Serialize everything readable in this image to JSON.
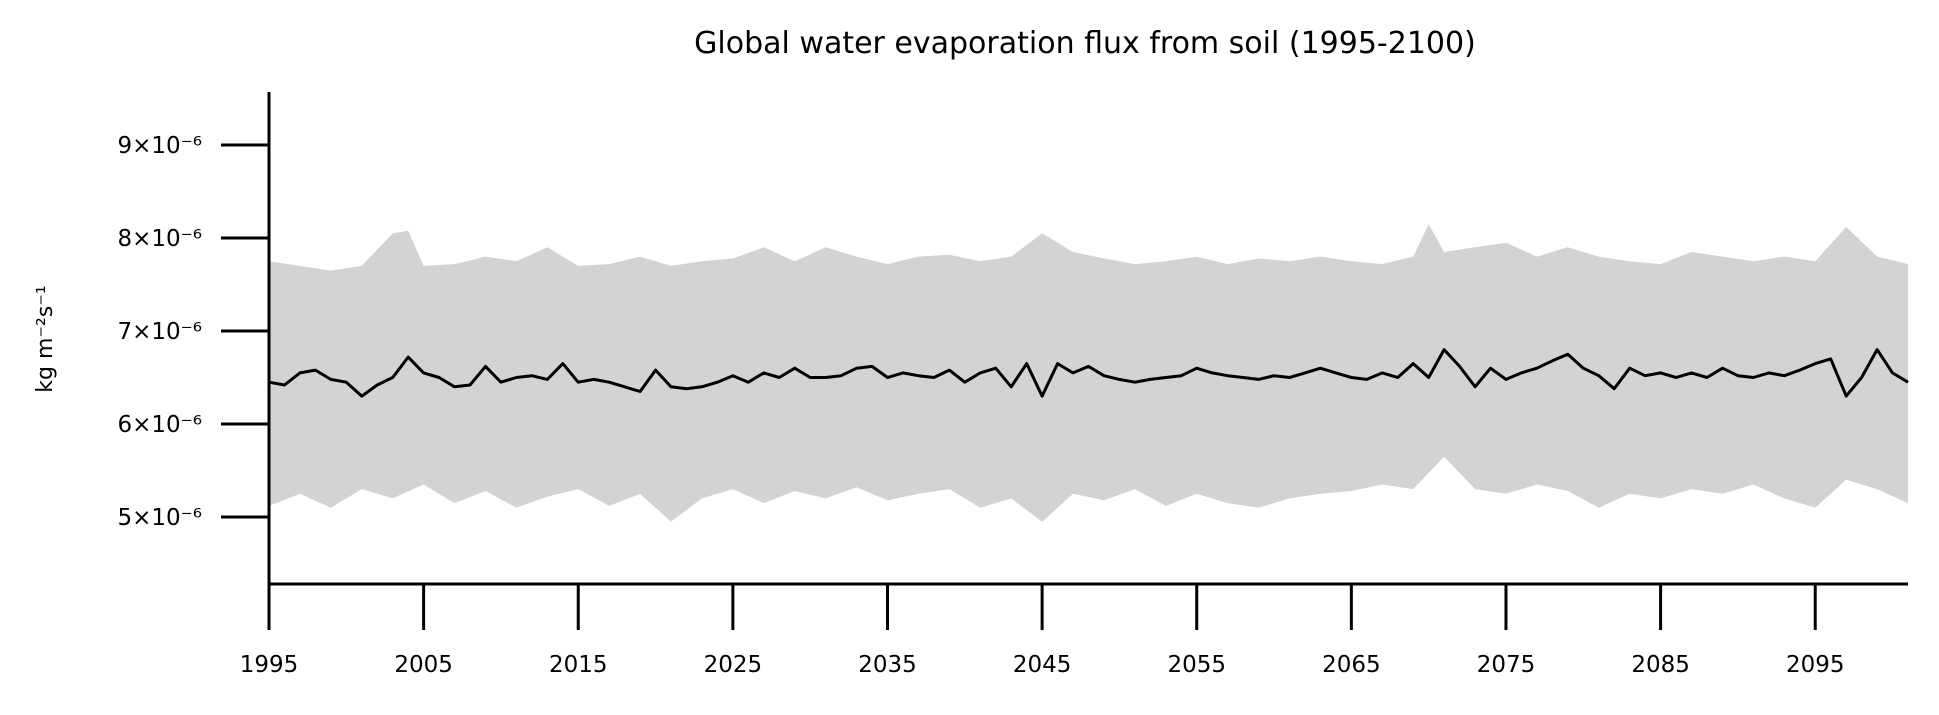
{
  "chart_data": {
    "type": "line",
    "title": "Global water evaporation flux from soil (1995-2100)",
    "xlabel": "",
    "ylabel": "kg m⁻²s⁻¹",
    "xlim": [
      1995,
      2101
    ],
    "ylim": [
      4.28e-06,
      9.57e-06
    ],
    "grid": false,
    "legend": "none",
    "x_ticks": [
      1995,
      2005,
      2015,
      2025,
      2035,
      2045,
      2055,
      2065,
      2075,
      2085,
      2095
    ],
    "y_ticks": [
      {
        "value": 5e-06,
        "label": "5×10⁻⁶"
      },
      {
        "value": 6e-06,
        "label": "6×10⁻⁶"
      },
      {
        "value": 7e-06,
        "label": "7×10⁻⁶"
      },
      {
        "value": 8e-06,
        "label": "8×10⁻⁶"
      },
      {
        "value": 9e-06,
        "label": "9×10⁻⁶"
      }
    ],
    "colors": {
      "line": "#000000",
      "band": "#d3d3d3",
      "axis": "#000000"
    },
    "series": [
      {
        "role": "mean",
        "x": [
          1995,
          1996,
          1997,
          1998,
          1999,
          2000,
          2001,
          2002,
          2003,
          2004,
          2005,
          2006,
          2007,
          2008,
          2009,
          2010,
          2011,
          2012,
          2013,
          2014,
          2015,
          2016,
          2017,
          2018,
          2019,
          2020,
          2021,
          2022,
          2023,
          2024,
          2025,
          2026,
          2027,
          2028,
          2029,
          2030,
          2031,
          2032,
          2033,
          2034,
          2035,
          2036,
          2037,
          2038,
          2039,
          2040,
          2041,
          2042,
          2043,
          2044,
          2045,
          2046,
          2047,
          2048,
          2049,
          2050,
          2051,
          2052,
          2053,
          2054,
          2055,
          2056,
          2057,
          2058,
          2059,
          2060,
          2061,
          2062,
          2063,
          2064,
          2065,
          2066,
          2067,
          2068,
          2069,
          2070,
          2071,
          2072,
          2073,
          2074,
          2075,
          2076,
          2077,
          2078,
          2079,
          2080,
          2081,
          2082,
          2083,
          2084,
          2085,
          2086,
          2087,
          2088,
          2089,
          2090,
          2091,
          2092,
          2093,
          2094,
          2095,
          2096,
          2097,
          2098,
          2099,
          2100,
          2101
        ],
        "y": [
          6.45e-06,
          6.42e-06,
          6.55e-06,
          6.58e-06,
          6.48e-06,
          6.45e-06,
          6.3e-06,
          6.42e-06,
          6.5e-06,
          6.72e-06,
          6.55e-06,
          6.5e-06,
          6.4e-06,
          6.42e-06,
          6.62e-06,
          6.45e-06,
          6.5e-06,
          6.52e-06,
          6.48e-06,
          6.65e-06,
          6.45e-06,
          6.48e-06,
          6.45e-06,
          6.4e-06,
          6.35e-06,
          6.58e-06,
          6.4e-06,
          6.38e-06,
          6.4e-06,
          6.45e-06,
          6.52e-06,
          6.45e-06,
          6.55e-06,
          6.5e-06,
          6.6e-06,
          6.5e-06,
          6.5e-06,
          6.52e-06,
          6.6e-06,
          6.62e-06,
          6.5e-06,
          6.55e-06,
          6.52e-06,
          6.5e-06,
          6.58e-06,
          6.45e-06,
          6.55e-06,
          6.6e-06,
          6.4e-06,
          6.65e-06,
          6.3e-06,
          6.65e-06,
          6.55e-06,
          6.62e-06,
          6.52e-06,
          6.48e-06,
          6.45e-06,
          6.48e-06,
          6.5e-06,
          6.52e-06,
          6.6e-06,
          6.55e-06,
          6.52e-06,
          6.5e-06,
          6.48e-06,
          6.52e-06,
          6.5e-06,
          6.55e-06,
          6.6e-06,
          6.55e-06,
          6.5e-06,
          6.48e-06,
          6.55e-06,
          6.5e-06,
          6.65e-06,
          6.5e-06,
          6.8e-06,
          6.62e-06,
          6.4e-06,
          6.6e-06,
          6.48e-06,
          6.55e-06,
          6.6e-06,
          6.68e-06,
          6.75e-06,
          6.6e-06,
          6.52e-06,
          6.38e-06,
          6.6e-06,
          6.52e-06,
          6.55e-06,
          6.5e-06,
          6.55e-06,
          6.5e-06,
          6.6e-06,
          6.52e-06,
          6.5e-06,
          6.55e-06,
          6.52e-06,
          6.58e-06,
          6.65e-06,
          6.7e-06,
          6.3e-06,
          6.5e-06,
          6.8e-06,
          6.55e-06,
          6.45e-06
        ]
      },
      {
        "role": "spread-upper",
        "x": [
          1995,
          1997,
          1999,
          2001,
          2003,
          2004,
          2005,
          2007,
          2009,
          2011,
          2013,
          2015,
          2017,
          2019,
          2021,
          2023,
          2025,
          2027,
          2029,
          2031,
          2033,
          2035,
          2037,
          2039,
          2041,
          2043,
          2045,
          2047,
          2049,
          2051,
          2053,
          2055,
          2057,
          2059,
          2061,
          2063,
          2065,
          2067,
          2069,
          2070,
          2071,
          2073,
          2075,
          2077,
          2079,
          2081,
          2083,
          2085,
          2087,
          2089,
          2091,
          2093,
          2095,
          2097,
          2099,
          2101
        ],
        "y": [
          7.75e-06,
          7.7e-06,
          7.65e-06,
          7.7e-06,
          8.05e-06,
          8.08e-06,
          7.7e-06,
          7.72e-06,
          7.8e-06,
          7.75e-06,
          7.9e-06,
          7.7e-06,
          7.72e-06,
          7.8e-06,
          7.7e-06,
          7.75e-06,
          7.78e-06,
          7.9e-06,
          7.75e-06,
          7.9e-06,
          7.8e-06,
          7.72e-06,
          7.8e-06,
          7.82e-06,
          7.75e-06,
          7.8e-06,
          8.05e-06,
          7.85e-06,
          7.78e-06,
          7.72e-06,
          7.75e-06,
          7.8e-06,
          7.72e-06,
          7.78e-06,
          7.75e-06,
          7.8e-06,
          7.75e-06,
          7.72e-06,
          7.8e-06,
          8.15e-06,
          7.85e-06,
          7.9e-06,
          7.95e-06,
          7.8e-06,
          7.9e-06,
          7.8e-06,
          7.75e-06,
          7.72e-06,
          7.85e-06,
          7.8e-06,
          7.75e-06,
          7.8e-06,
          7.75e-06,
          8.12e-06,
          7.8e-06,
          7.72e-06
        ]
      },
      {
        "role": "spread-lower",
        "x": [
          1995,
          1997,
          1999,
          2001,
          2003,
          2005,
          2007,
          2009,
          2011,
          2013,
          2015,
          2017,
          2019,
          2021,
          2023,
          2025,
          2027,
          2029,
          2031,
          2033,
          2035,
          2037,
          2039,
          2041,
          2043,
          2045,
          2047,
          2049,
          2051,
          2053,
          2055,
          2057,
          2059,
          2061,
          2063,
          2065,
          2067,
          2069,
          2071,
          2073,
          2075,
          2077,
          2079,
          2081,
          2083,
          2085,
          2087,
          2089,
          2091,
          2093,
          2095,
          2097,
          2099,
          2101
        ],
        "y": [
          5.12e-06,
          5.25e-06,
          5.1e-06,
          5.3e-06,
          5.2e-06,
          5.35e-06,
          5.15e-06,
          5.28e-06,
          5.1e-06,
          5.22e-06,
          5.3e-06,
          5.12e-06,
          5.25e-06,
          4.95e-06,
          5.2e-06,
          5.3e-06,
          5.15e-06,
          5.28e-06,
          5.2e-06,
          5.32e-06,
          5.18e-06,
          5.25e-06,
          5.3e-06,
          5.1e-06,
          5.2e-06,
          4.95e-06,
          5.25e-06,
          5.18e-06,
          5.3e-06,
          5.12e-06,
          5.25e-06,
          5.15e-06,
          5.1e-06,
          5.2e-06,
          5.25e-06,
          5.28e-06,
          5.35e-06,
          5.3e-06,
          5.65e-06,
          5.3e-06,
          5.25e-06,
          5.35e-06,
          5.28e-06,
          5.1e-06,
          5.25e-06,
          5.2e-06,
          5.3e-06,
          5.25e-06,
          5.35e-06,
          5.2e-06,
          5.1e-06,
          5.4e-06,
          5.3e-06,
          5.15e-06
        ]
      }
    ]
  }
}
